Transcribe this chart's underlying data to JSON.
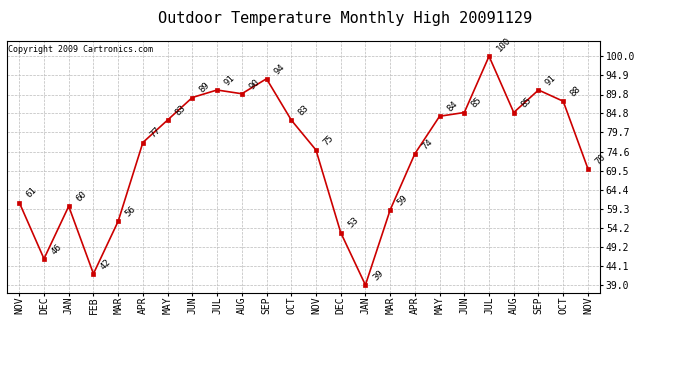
{
  "title": "Outdoor Temperature Monthly High 20091129",
  "copyright": "Copyright 2009 Cartronics.com",
  "x_labels": [
    "NOV",
    "DEC",
    "JAN",
    "FEB",
    "MAR",
    "APR",
    "MAY",
    "JUN",
    "JUL",
    "AUG",
    "SEP",
    "OCT",
    "NOV",
    "DEC",
    "JAN",
    "MAR",
    "APR",
    "MAY",
    "JUN",
    "JUL",
    "AUG",
    "SEP",
    "OCT",
    "NOV"
  ],
  "y_values": [
    61,
    46,
    60,
    42,
    56,
    77,
    83,
    89,
    91,
    90,
    94,
    83,
    75,
    53,
    39,
    59,
    74,
    84,
    85,
    100,
    85,
    91,
    88,
    70
  ],
  "y_ticks": [
    39.0,
    44.1,
    49.2,
    54.2,
    59.3,
    64.4,
    69.5,
    74.6,
    79.7,
    84.8,
    89.8,
    94.9,
    100.0
  ],
  "line_color": "#cc0000",
  "marker_color": "#cc0000",
  "background_color": "#ffffff",
  "grid_color": "#bbbbbb",
  "title_fontsize": 11,
  "tick_fontsize": 7,
  "annotation_fontsize": 6.5,
  "copyright_fontsize": 6
}
